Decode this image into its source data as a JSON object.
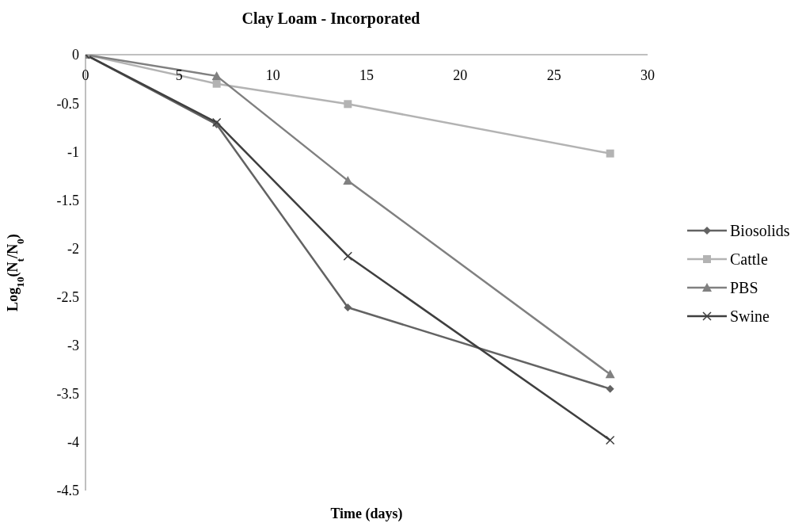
{
  "chart_data": {
    "type": "line",
    "title": "Clay Loam - Incorporated",
    "xlabel": "Time (days)",
    "ylabel": "Log$_{10}$(N$_{t}$/N$_{0}$)",
    "x": [
      0,
      7,
      14,
      28
    ],
    "series": [
      {
        "name": "Biosolids",
        "color": "#636363",
        "marker": "diamond",
        "values": [
          0,
          -0.72,
          -2.61,
          -3.45
        ]
      },
      {
        "name": "Cattle",
        "color": "#b3b3b3",
        "marker": "square",
        "values": [
          0,
          -0.3,
          -0.51,
          -1.02
        ]
      },
      {
        "name": "PBS",
        "color": "#808080",
        "marker": "triangle",
        "values": [
          0,
          -0.22,
          -1.3,
          -3.3
        ]
      },
      {
        "name": "Swine",
        "color": "#3f3f3f",
        "marker": "cross",
        "values": [
          0,
          -0.7,
          -2.08,
          -3.98
        ]
      }
    ],
    "xlim": [
      0,
      30
    ],
    "xticks": [
      0,
      5,
      10,
      15,
      20,
      25,
      30
    ],
    "ylim": [
      -4.5,
      0
    ],
    "yticks": [
      -4.5,
      -4,
      -3.5,
      -3,
      -2.5,
      -2,
      -1.5,
      -1,
      -0.5,
      0
    ],
    "grid": false,
    "legend": "right",
    "line_style": "solid"
  }
}
